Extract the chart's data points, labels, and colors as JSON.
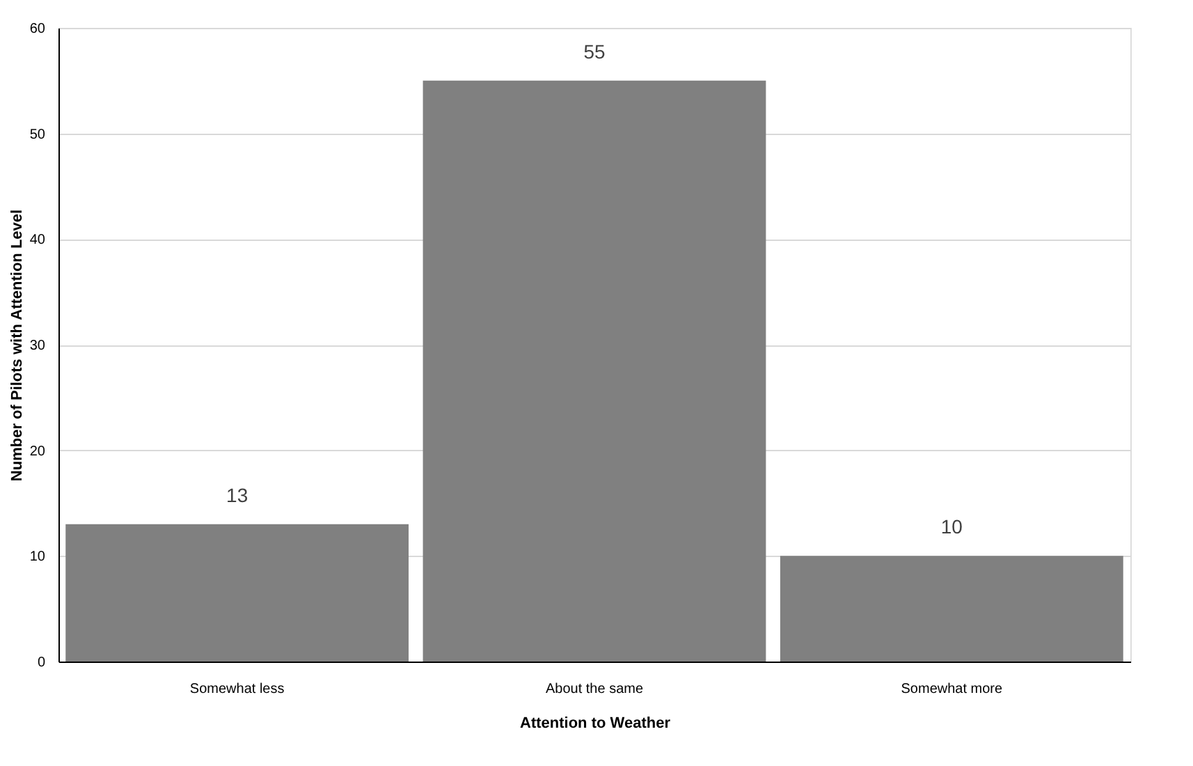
{
  "chart_data": {
    "type": "bar",
    "xlabel": "Attention to Weather",
    "ylabel": "Number of Pilots with Attention Level",
    "categories": [
      "Somewhat less",
      "About the same",
      "Somewhat more"
    ],
    "values": [
      13,
      55,
      10
    ],
    "color": "#808080",
    "ylim": [
      0,
      60
    ],
    "yticks": [
      0,
      10,
      20,
      30,
      40,
      50,
      60
    ],
    "grid": "y",
    "data_labels": true
  }
}
